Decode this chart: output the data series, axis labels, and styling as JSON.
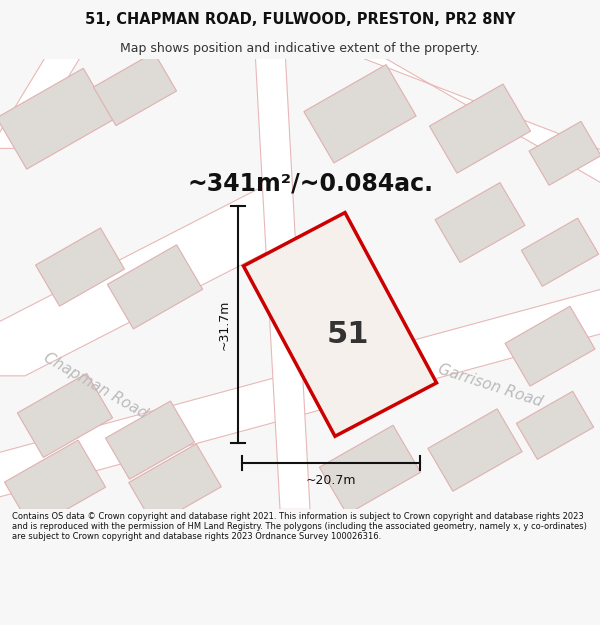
{
  "title": "51, CHAPMAN ROAD, FULWOOD, PRESTON, PR2 8NY",
  "subtitle": "Map shows position and indicative extent of the property.",
  "area_label": "~341m²/~0.084ac.",
  "property_number": "51",
  "dim_height": "~31.7m",
  "dim_width": "~20.7m",
  "road_label_chapman": "Chapman Road",
  "road_label_garrison": "Garrison Road",
  "footer": "Contains OS data © Crown copyright and database right 2021. This information is subject to Crown copyright and database rights 2023 and is reproduced with the permission of HM Land Registry. The polygons (including the associated geometry, namely x, y co-ordinates) are subject to Crown copyright and database rights 2023 Ordnance Survey 100026316.",
  "bg_color": "#f7f7f7",
  "map_bg": "#eeebe8",
  "road_fill": "#ffffff",
  "building_fill": "#dedad6",
  "building_stroke": "#e0b0b0",
  "highlight_fill": "#f5f0ec",
  "highlight_stroke": "#cc0000",
  "road_stroke": "#e8b8b8",
  "dim_line_color": "#111111",
  "title_color": "#111111",
  "subtitle_color": "#333333",
  "road_label_color": "#bbbbbb",
  "footer_color": "#111111",
  "area_label_color": "#111111"
}
